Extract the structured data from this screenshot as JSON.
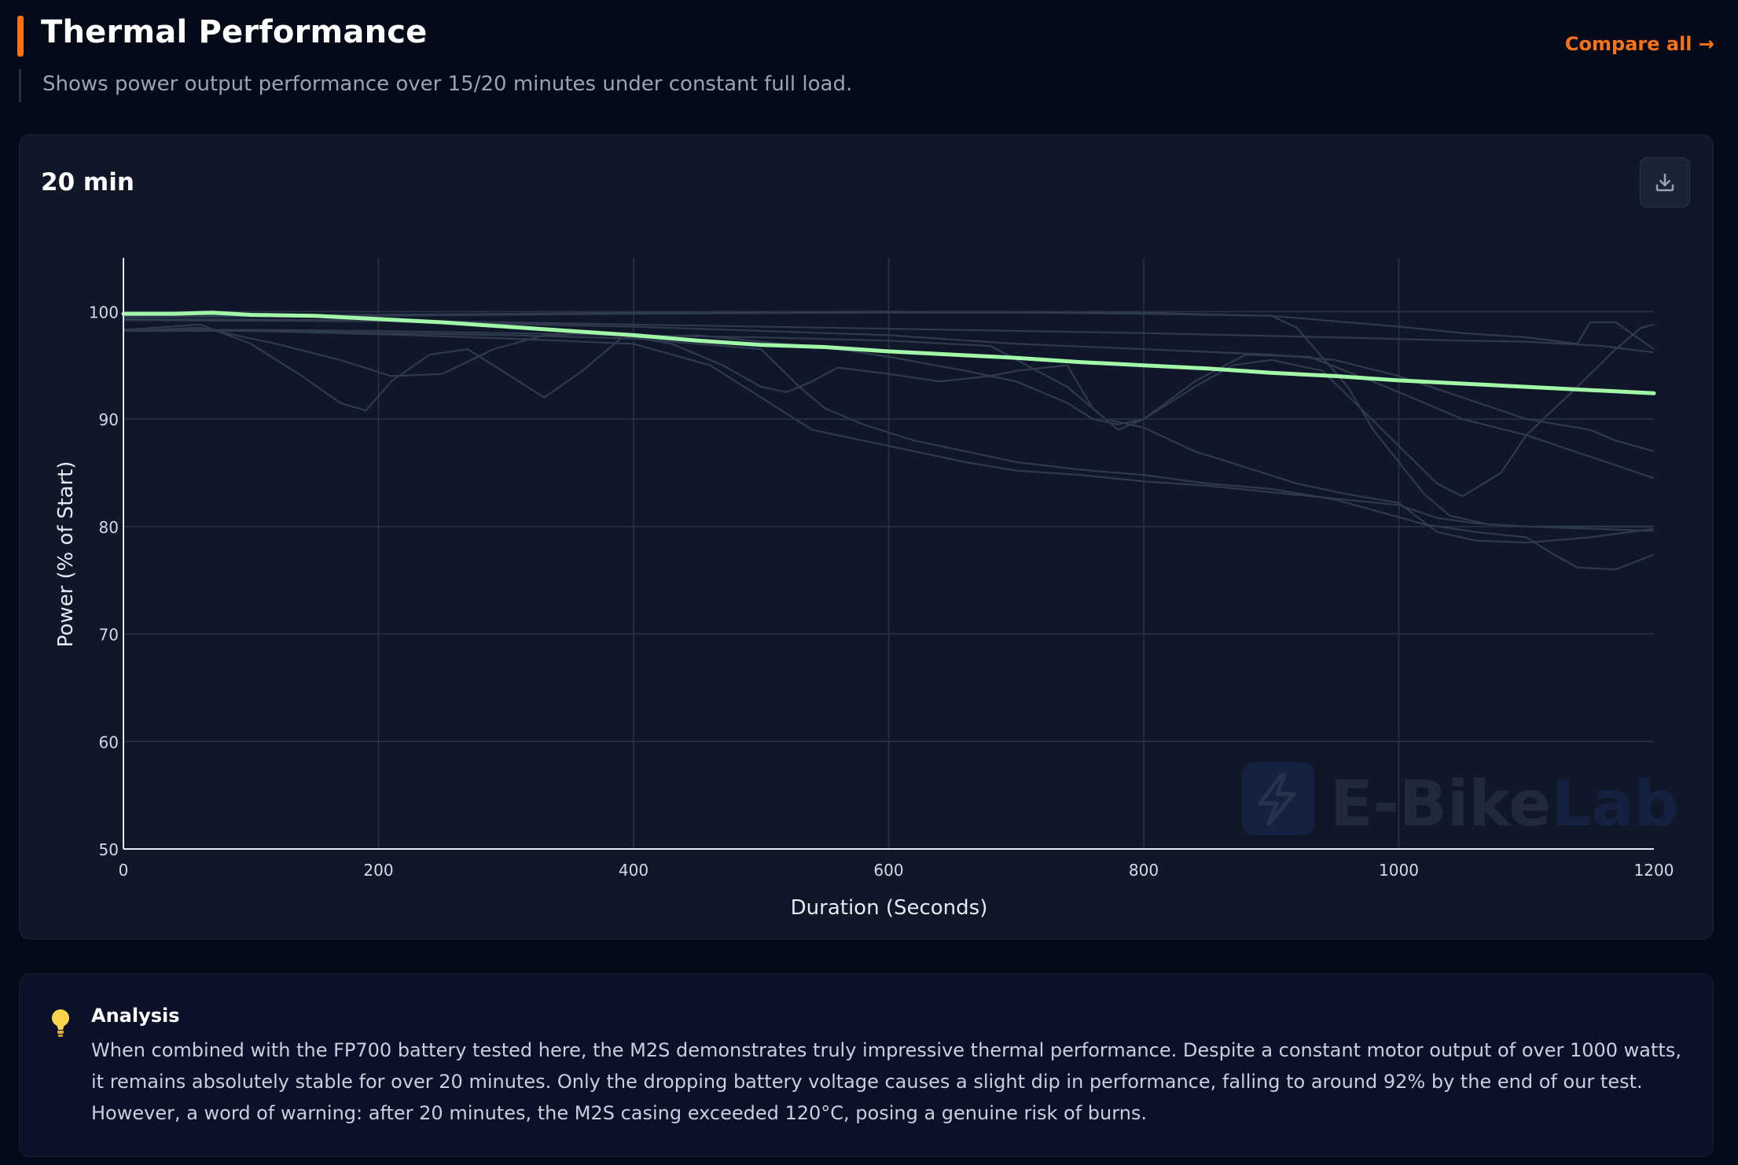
{
  "header": {
    "title": "Thermal Performance",
    "subtitle": "Shows power output performance over 15/20 minutes under constant full load.",
    "compare_link": "Compare all →"
  },
  "chart_card": {
    "name": "20 min",
    "download_icon": "download-icon"
  },
  "watermark": {
    "brand_part1": "E-Bike",
    "brand_part2": "Lab",
    "icon": "lightning-bolt-icon"
  },
  "analysis": {
    "icon": "lightbulb-icon",
    "title": "Analysis",
    "text": "When combined with the FP700 battery tested here, the M2S demonstrates truly impressive thermal performance. Despite a constant motor output of over 1000 watts, it remains absolutely stable for over 20 minutes. Only the dropping battery voltage causes a slight dip in performance, falling to around 92% by the end of our test. However, a word of warning: after 20 minutes, the M2S casing exceeded 120°C, posing a genuine risk of burns."
  },
  "colors": {
    "accent": "#f97316",
    "highlight_series": "#a3f7a8",
    "background_series": "#2e3a4d",
    "gridline": "#2a3446",
    "background": "#050a18",
    "card": "#0f1729"
  },
  "chart_data": {
    "type": "line",
    "title": "",
    "xlabel": "Duration (Seconds)",
    "ylabel": "Power (% of Start)",
    "xlim": [
      0,
      1200
    ],
    "ylim": [
      50,
      105
    ],
    "xticks": [
      0,
      200,
      400,
      600,
      800,
      1000,
      1200
    ],
    "yticks": [
      50,
      60,
      70,
      80,
      90,
      100
    ],
    "grid": true,
    "legend": "none",
    "highlight_series": {
      "points": [
        [
          0,
          99.8
        ],
        [
          40,
          99.8
        ],
        [
          70,
          99.9
        ],
        [
          100,
          99.7
        ],
        [
          150,
          99.6
        ],
        [
          200,
          99.3
        ],
        [
          250,
          99.0
        ],
        [
          300,
          98.6
        ],
        [
          350,
          98.2
        ],
        [
          400,
          97.8
        ],
        [
          450,
          97.3
        ],
        [
          500,
          96.9
        ],
        [
          550,
          96.7
        ],
        [
          600,
          96.3
        ],
        [
          650,
          96.0
        ],
        [
          700,
          95.7
        ],
        [
          750,
          95.3
        ],
        [
          800,
          95.0
        ],
        [
          850,
          94.7
        ],
        [
          900,
          94.3
        ],
        [
          950,
          94.0
        ],
        [
          1000,
          93.6
        ],
        [
          1050,
          93.3
        ],
        [
          1100,
          93.0
        ],
        [
          1150,
          92.7
        ],
        [
          1200,
          92.4
        ]
      ]
    },
    "background_series": [
      {
        "points": [
          [
            0,
            98.3
          ],
          [
            60,
            98.8
          ],
          [
            100,
            97
          ],
          [
            140,
            94
          ],
          [
            170,
            91.5
          ],
          [
            190,
            90.8
          ],
          [
            210,
            93.5
          ],
          [
            240,
            96
          ],
          [
            270,
            96.5
          ],
          [
            310,
            93.5
          ],
          [
            330,
            92
          ],
          [
            360,
            94.5
          ],
          [
            390,
            97.5
          ],
          [
            450,
            97.8
          ],
          [
            500,
            97.2
          ],
          [
            560,
            96.5
          ],
          [
            600,
            95.8
          ],
          [
            660,
            94.5
          ],
          [
            700,
            93.5
          ],
          [
            740,
            91.5
          ],
          [
            760,
            90
          ],
          [
            780,
            89.5
          ],
          [
            800,
            90
          ],
          [
            840,
            93.5
          ],
          [
            880,
            96
          ],
          [
            930,
            95.8
          ],
          [
            990,
            93
          ],
          [
            1050,
            90
          ],
          [
            1100,
            88.5
          ],
          [
            1150,
            86.5
          ],
          [
            1200,
            84.5
          ]
        ]
      },
      {
        "points": [
          [
            0,
            98.2
          ],
          [
            60,
            98.5
          ],
          [
            120,
            97
          ],
          [
            170,
            95.5
          ],
          [
            210,
            94
          ],
          [
            250,
            94.2
          ],
          [
            290,
            96.5
          ],
          [
            330,
            97.8
          ],
          [
            380,
            98
          ],
          [
            430,
            97
          ],
          [
            470,
            95
          ],
          [
            500,
            93
          ],
          [
            520,
            92.5
          ],
          [
            540,
            93.5
          ],
          [
            560,
            94.8
          ],
          [
            600,
            94.2
          ],
          [
            640,
            93.5
          ],
          [
            680,
            94
          ],
          [
            700,
            94.5
          ],
          [
            740,
            95
          ],
          [
            760,
            91
          ],
          [
            780,
            89
          ],
          [
            800,
            90
          ],
          [
            840,
            93
          ],
          [
            870,
            95
          ],
          [
            900,
            95.5
          ],
          [
            940,
            94.5
          ],
          [
            970,
            91
          ],
          [
            1000,
            87.5
          ],
          [
            1030,
            84
          ],
          [
            1050,
            82.8
          ],
          [
            1080,
            85
          ],
          [
            1100,
            88.5
          ],
          [
            1140,
            93
          ],
          [
            1170,
            96.5
          ],
          [
            1190,
            98.5
          ],
          [
            1200,
            98.8
          ]
        ]
      },
      {
        "points": [
          [
            0,
            98.3
          ],
          [
            100,
            98.2
          ],
          [
            200,
            97.9
          ],
          [
            300,
            97.5
          ],
          [
            400,
            97
          ],
          [
            460,
            95
          ],
          [
            500,
            92
          ],
          [
            540,
            89
          ],
          [
            580,
            88
          ],
          [
            620,
            87
          ],
          [
            660,
            86
          ],
          [
            700,
            85.2
          ],
          [
            750,
            84.8
          ],
          [
            800,
            84.2
          ],
          [
            850,
            83.8
          ],
          [
            900,
            83.2
          ],
          [
            950,
            82.6
          ],
          [
            1000,
            82
          ],
          [
            1030,
            80.8
          ],
          [
            1060,
            80.3
          ],
          [
            1100,
            80
          ],
          [
            1150,
            80
          ],
          [
            1200,
            80
          ]
        ]
      },
      {
        "points": [
          [
            0,
            98.2
          ],
          [
            100,
            98.2
          ],
          [
            200,
            98
          ],
          [
            300,
            97.8
          ],
          [
            400,
            97.5
          ],
          [
            500,
            96.5
          ],
          [
            530,
            93
          ],
          [
            550,
            91
          ],
          [
            580,
            89.5
          ],
          [
            620,
            88
          ],
          [
            660,
            87
          ],
          [
            700,
            86
          ],
          [
            750,
            85.3
          ],
          [
            800,
            84.8
          ],
          [
            850,
            84
          ],
          [
            900,
            83.5
          ],
          [
            950,
            82.5
          ],
          [
            990,
            81.2
          ],
          [
            1020,
            80.2
          ],
          [
            1060,
            79.5
          ],
          [
            1100,
            79
          ],
          [
            1120,
            77.5
          ],
          [
            1140,
            76.2
          ],
          [
            1170,
            76
          ],
          [
            1200,
            77.4
          ]
        ]
      },
      {
        "points": [
          [
            0,
            98.3
          ],
          [
            100,
            98.3
          ],
          [
            200,
            98.2
          ],
          [
            300,
            98
          ],
          [
            400,
            97.8
          ],
          [
            500,
            97.6
          ],
          [
            600,
            97.3
          ],
          [
            680,
            96.8
          ],
          [
            740,
            93
          ],
          [
            770,
            90
          ],
          [
            800,
            89.2
          ],
          [
            840,
            87
          ],
          [
            880,
            85.5
          ],
          [
            920,
            84
          ],
          [
            960,
            83
          ],
          [
            1000,
            82.2
          ],
          [
            1030,
            79.5
          ],
          [
            1060,
            78.7
          ],
          [
            1100,
            78.5
          ],
          [
            1150,
            79
          ],
          [
            1200,
            79.8
          ]
        ]
      },
      {
        "points": [
          [
            0,
            99.5
          ],
          [
            200,
            99.6
          ],
          [
            400,
            99.8
          ],
          [
            600,
            99.9
          ],
          [
            700,
            99.9
          ],
          [
            800,
            99.8
          ],
          [
            900,
            99.6
          ],
          [
            920,
            98.5
          ],
          [
            960,
            93
          ],
          [
            980,
            89
          ],
          [
            1000,
            86
          ],
          [
            1020,
            83
          ],
          [
            1040,
            81
          ],
          [
            1070,
            80.2
          ],
          [
            1100,
            80
          ],
          [
            1150,
            79.8
          ],
          [
            1200,
            79.6
          ]
        ]
      },
      {
        "points": [
          [
            0,
            99.6
          ],
          [
            200,
            99.7
          ],
          [
            400,
            99.9
          ],
          [
            600,
            100
          ],
          [
            800,
            99.9
          ],
          [
            900,
            99.6
          ],
          [
            1000,
            98.6
          ],
          [
            1050,
            98
          ],
          [
            1100,
            97.6
          ],
          [
            1140,
            97
          ],
          [
            1150,
            99
          ],
          [
            1170,
            99
          ],
          [
            1200,
            96.5
          ]
        ]
      },
      {
        "points": [
          [
            0,
            99.2
          ],
          [
            200,
            99.1
          ],
          [
            400,
            98.6
          ],
          [
            600,
            97.8
          ],
          [
            700,
            97
          ],
          [
            800,
            96.5
          ],
          [
            900,
            96
          ],
          [
            950,
            95.5
          ],
          [
            1000,
            94
          ],
          [
            1050,
            92
          ],
          [
            1100,
            90
          ],
          [
            1150,
            89
          ],
          [
            1170,
            88
          ],
          [
            1200,
            87
          ]
        ]
      },
      {
        "points": [
          [
            0,
            99.3
          ],
          [
            200,
            99.2
          ],
          [
            400,
            98.8
          ],
          [
            600,
            98.4
          ],
          [
            800,
            98
          ],
          [
            950,
            97.6
          ],
          [
            1050,
            97.3
          ],
          [
            1100,
            97.2
          ],
          [
            1160,
            96.8
          ],
          [
            1200,
            96.2
          ]
        ]
      }
    ]
  }
}
